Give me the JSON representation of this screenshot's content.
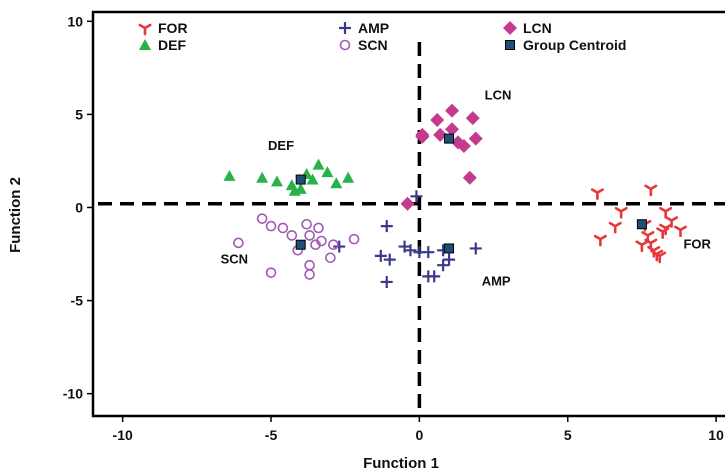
{
  "chart_data": {
    "type": "scatter",
    "title": "",
    "xlabel": "Function 1",
    "ylabel": "Function 2",
    "xlim": [
      -11,
      10.3
    ],
    "ylim": [
      -11.2,
      10.5
    ],
    "xticks": [
      -10,
      -5,
      0,
      5,
      10
    ],
    "yticks": [
      10,
      5,
      0,
      -5,
      -10
    ],
    "reference_lines": {
      "x": 0,
      "y": 0.2
    },
    "legend": {
      "placement": "top-left",
      "entries": [
        {
          "label": "FOR",
          "marker": "tri-y",
          "color": "#e8373a"
        },
        {
          "label": "AMP",
          "marker": "plus",
          "color": "#3a3a8c"
        },
        {
          "label": "LCN",
          "marker": "diamond",
          "color": "#c43a8f"
        },
        {
          "label": "DEF",
          "marker": "triangle",
          "color": "#27b34a"
        },
        {
          "label": "SCN",
          "marker": "circle-open",
          "color": "#a05ab4"
        },
        {
          "label": "Group Centroid",
          "marker": "square",
          "color": "#1f4e79"
        }
      ]
    },
    "series": [
      {
        "name": "FOR",
        "marker": "tri-y",
        "color": "#e8373a",
        "x": [
          6.0,
          6.1,
          6.6,
          6.8,
          7.8,
          8.3,
          8.3,
          7.7,
          7.8,
          7.9,
          8.1,
          8.5,
          8.8,
          7.5,
          7.6,
          8.0,
          8.2
        ],
        "y": [
          0.8,
          -1.7,
          -1.0,
          -0.2,
          1.0,
          -0.2,
          -1.1,
          -1.5,
          -1.9,
          -2.3,
          -2.6,
          -0.7,
          -1.2,
          -2.0,
          -0.9,
          -2.5,
          -1.3
        ]
      },
      {
        "name": "AMP",
        "marker": "plus",
        "color": "#3a3a8c",
        "x": [
          -1.1,
          -1.3,
          -1.0,
          -0.5,
          -0.3,
          0.0,
          0.3,
          0.8,
          1.0,
          0.8,
          1.9,
          -0.1,
          -2.7,
          0.5,
          -1.1,
          0.3
        ],
        "y": [
          -1.0,
          -2.6,
          -2.8,
          -2.1,
          -2.3,
          -2.4,
          -2.4,
          -2.3,
          -2.8,
          -3.1,
          -2.2,
          0.6,
          -2.1,
          -3.7,
          -4.0,
          -3.7
        ]
      },
      {
        "name": "LCN",
        "marker": "diamond",
        "color": "#c43a8f",
        "x": [
          0.6,
          1.1,
          1.8,
          1.1,
          1.5,
          0.1,
          0.7,
          1.3,
          1.9,
          1.7,
          -0.4,
          0.1
        ],
        "y": [
          4.7,
          5.2,
          4.8,
          4.2,
          3.3,
          3.8,
          3.9,
          3.5,
          3.7,
          1.6,
          0.2,
          3.9
        ]
      },
      {
        "name": "DEF",
        "marker": "triangle",
        "color": "#27b34a",
        "x": [
          -6.4,
          -5.3,
          -4.8,
          -4.3,
          -4.0,
          -3.6,
          -3.4,
          -3.1,
          -2.8,
          -2.4,
          -3.8,
          -4.2
        ],
        "y": [
          1.7,
          1.6,
          1.4,
          1.2,
          1.0,
          1.5,
          2.3,
          1.9,
          1.3,
          1.6,
          1.8,
          0.9
        ]
      },
      {
        "name": "SCN",
        "marker": "circle-open",
        "color": "#a05ab4",
        "x": [
          -6.1,
          -5.3,
          -5.0,
          -4.6,
          -4.3,
          -3.8,
          -3.4,
          -3.3,
          -3.7,
          -4.1,
          -3.5,
          -2.9,
          -2.2,
          -3.0,
          -3.7,
          -5.0,
          -3.7
        ],
        "y": [
          -1.9,
          -0.6,
          -1.0,
          -1.1,
          -1.5,
          -0.9,
          -1.1,
          -1.8,
          -1.5,
          -2.3,
          -2.0,
          -2.0,
          -1.7,
          -2.7,
          -3.1,
          -3.5,
          -3.6
        ]
      },
      {
        "name": "Group Centroid",
        "marker": "square",
        "color": "#1f4e79",
        "x": [
          7.5,
          1.0,
          1.0,
          -4.0,
          -4.0
        ],
        "y": [
          -0.9,
          -2.2,
          3.7,
          1.5,
          -2.0
        ]
      }
    ],
    "annotations": [
      {
        "text": "LCN",
        "x": 2.2,
        "y": 5.8
      },
      {
        "text": "DEF",
        "x": -5.1,
        "y": 3.1
      },
      {
        "text": "SCN",
        "x": -6.7,
        "y": -3.0
      },
      {
        "text": "AMP",
        "x": 2.1,
        "y": -4.2
      },
      {
        "text": "FOR",
        "x": 8.9,
        "y": -2.2
      }
    ]
  }
}
